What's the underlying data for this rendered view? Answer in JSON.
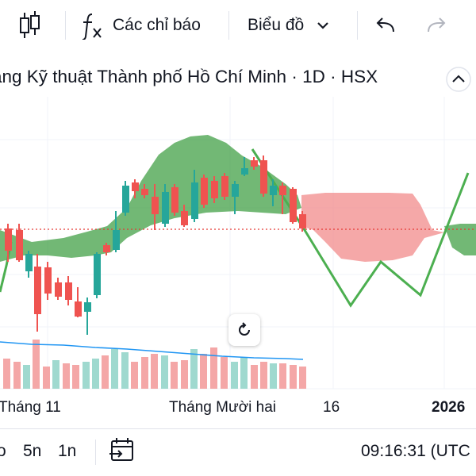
{
  "toolbar": {
    "indicators_label": "Các chỉ báo",
    "chart_type_label": "Biểu đồ",
    "icons": [
      "candles-icon",
      "fx-indicator-icon",
      "chevron-down-icon",
      "undo-icon",
      "redo-icon"
    ]
  },
  "title": {
    "text": "ằng Kỹ thuật Thành phố Hồ Chí Minh · 1D · HSX"
  },
  "time_axis": {
    "labels": [
      "Tháng 11",
      "Tháng Mười hai",
      "16",
      "2026"
    ]
  },
  "bottom_bar": {
    "timeframes": [
      "o",
      "5n",
      "1n"
    ],
    "clock": "09:16:31 (UTC"
  },
  "colors": {
    "up": "#26a69a",
    "down": "#ef5350",
    "cloud_bull": "#43a047",
    "cloud_bear": "#f28b8b",
    "chikou": "#4caf50",
    "volume_ma": "#2196f3",
    "price_line": "#e53935"
  }
}
